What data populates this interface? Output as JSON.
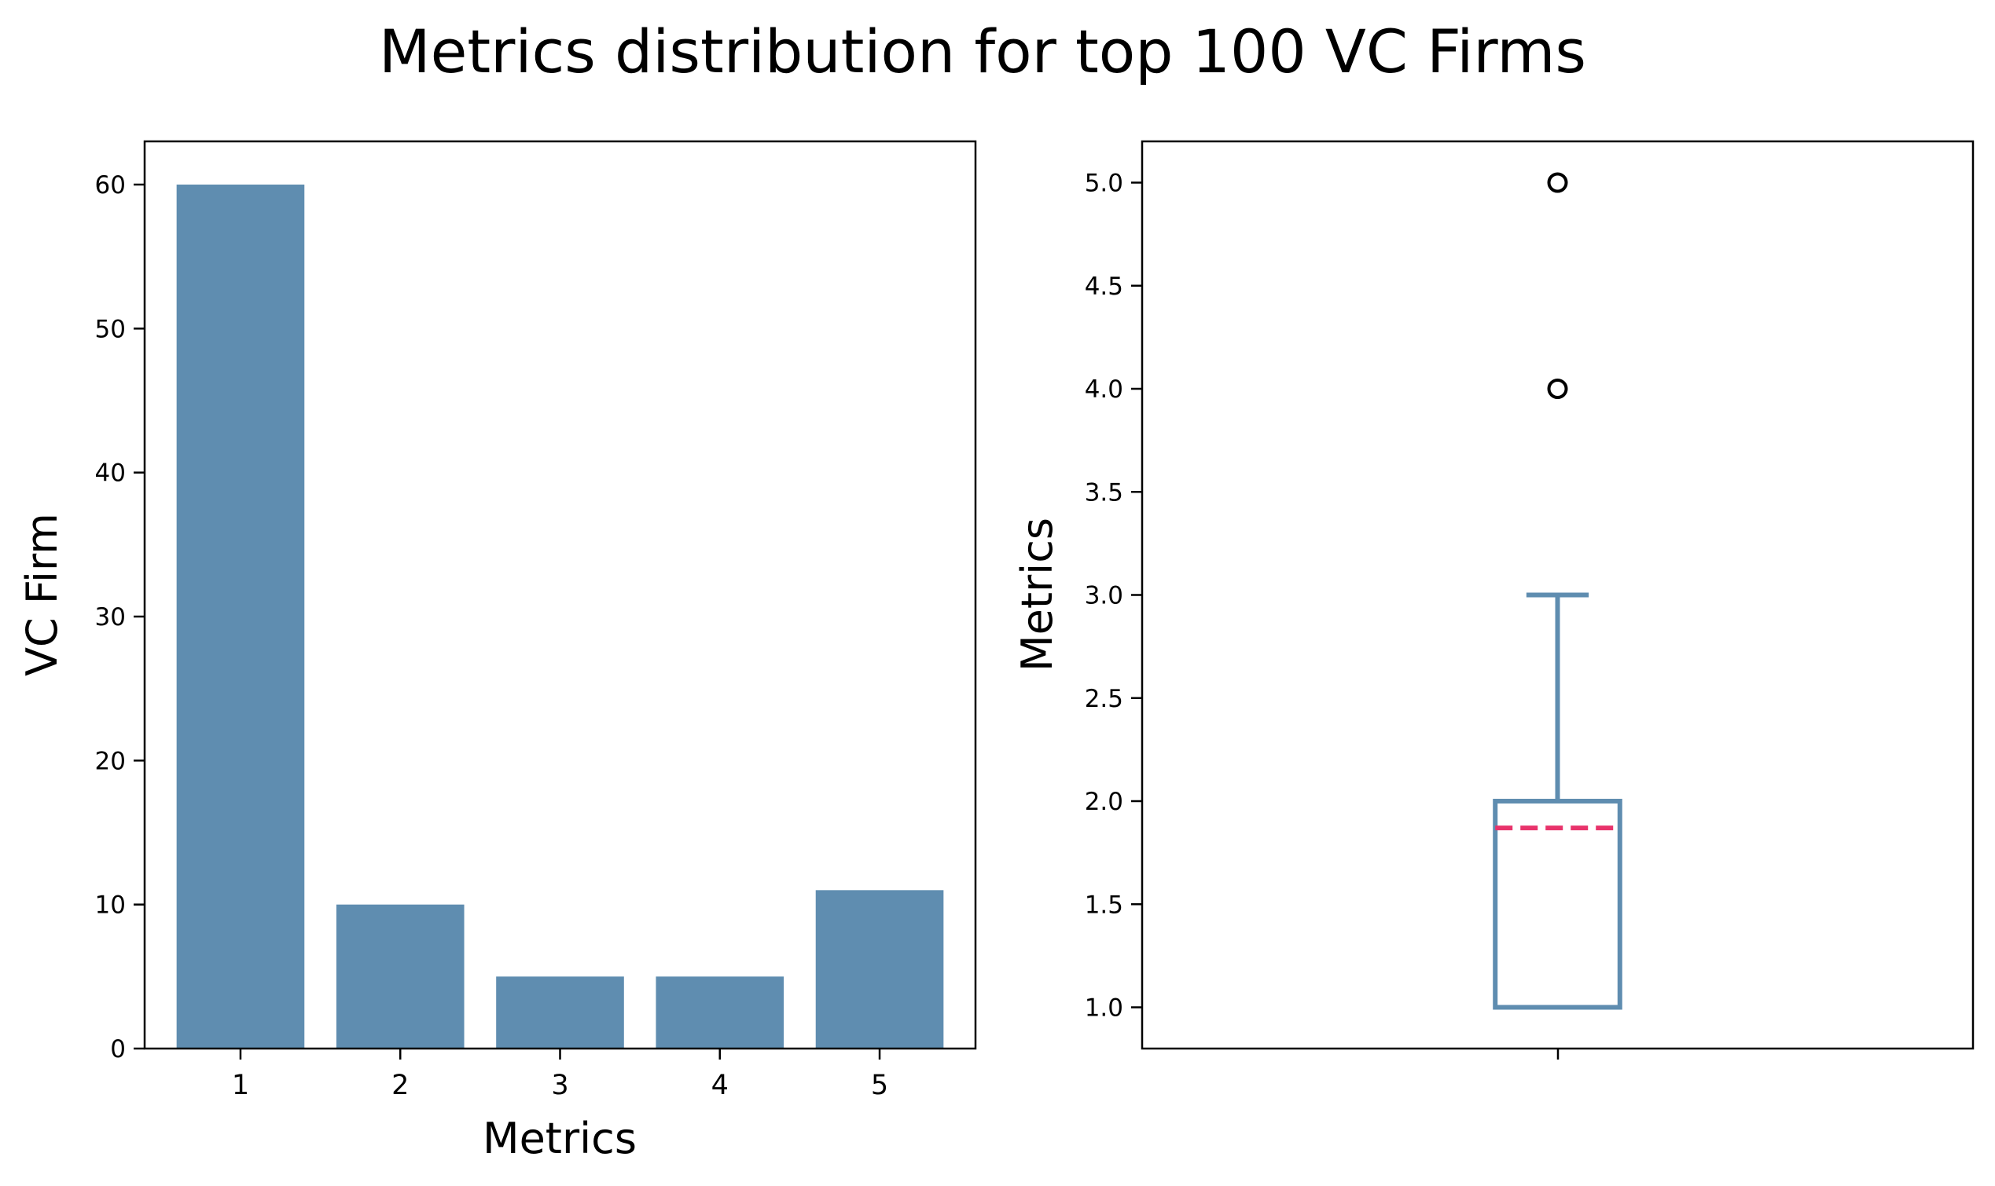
{
  "title": "Metrics distribution for top 100 VC Firms",
  "colors": {
    "bar": "#5f8db0",
    "box": "#5f8db0",
    "mean_line": "#e8336b",
    "outlier_edge": "#000000"
  },
  "chart_data": [
    {
      "type": "bar",
      "categories": [
        "1",
        "2",
        "3",
        "4",
        "5"
      ],
      "values": [
        60,
        10,
        5,
        5,
        11
      ],
      "xlabel": "Metrics",
      "ylabel": "VC Firm",
      "ylim": [
        0,
        63
      ],
      "yticks": [
        0,
        10,
        20,
        30,
        40,
        50,
        60
      ],
      "grid": false
    },
    {
      "type": "box",
      "xlabel": "",
      "ylabel": "Metrics",
      "ylim": [
        0.8,
        5.2
      ],
      "yticks": [
        "1.0",
        "1.5",
        "2.0",
        "2.5",
        "3.0",
        "3.5",
        "4.0",
        "4.5",
        "5.0"
      ],
      "box": {
        "q1": 1.0,
        "median": 1.0,
        "q3": 2.0,
        "whisker_low": 1.0,
        "whisker_high": 3.0,
        "mean": 1.87,
        "outliers": [
          4.0,
          5.0
        ]
      },
      "grid": false
    }
  ]
}
